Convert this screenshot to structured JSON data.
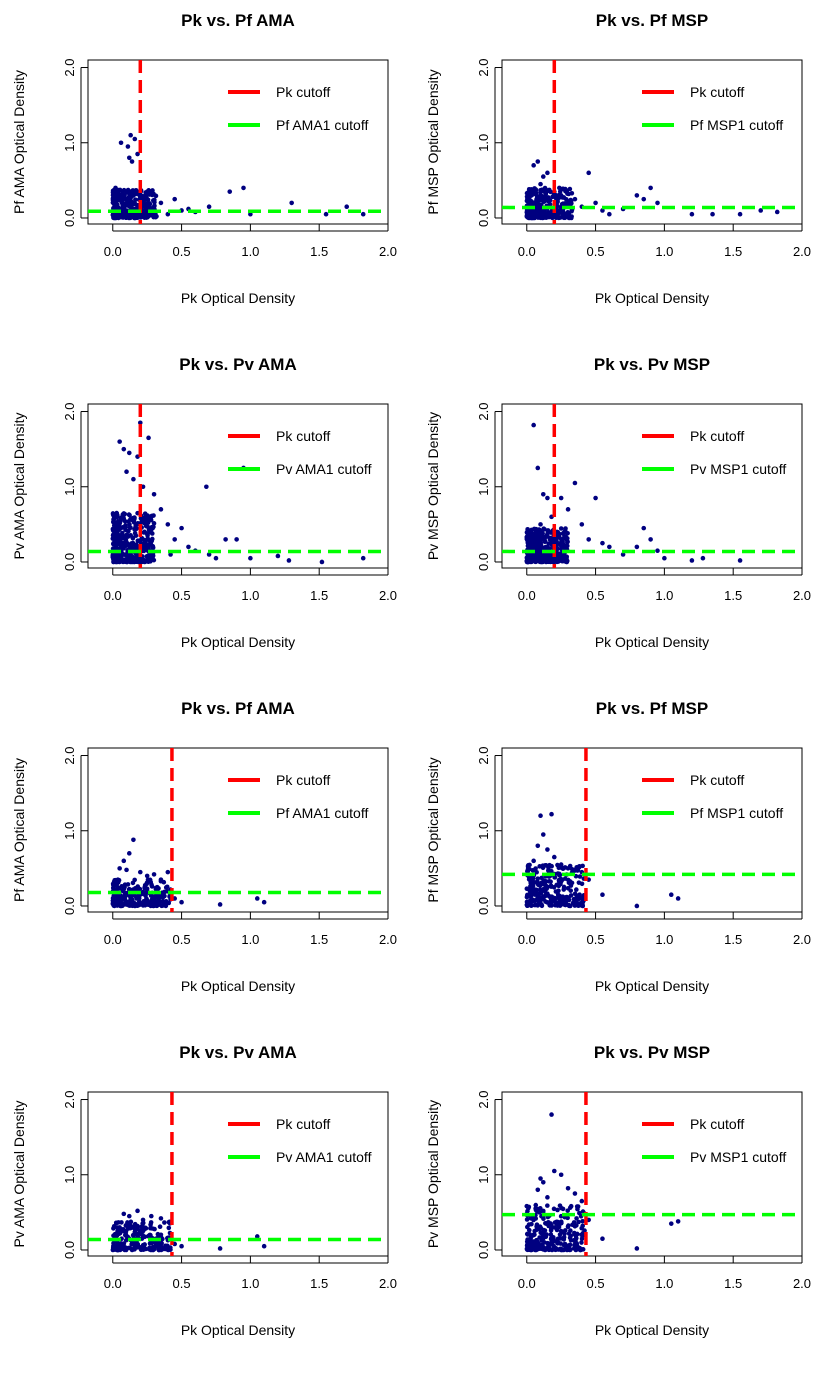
{
  "chart_data": [
    {
      "type": "scatter",
      "title": "Pk vs. Pf AMA",
      "xlabel": "Pk Optical Density",
      "ylabel": "Pf AMA Optical Density",
      "xlim": [
        -0.18,
        2.0
      ],
      "ylim": [
        -0.08,
        2.1
      ],
      "xticks": [
        "0.0",
        "0.5",
        "1.0",
        "1.5",
        "2.0"
      ],
      "yticks": [
        "0.0",
        "1.0",
        "2.0"
      ],
      "grid": false,
      "legend_position": "top-right",
      "series": [
        {
          "color": "#000080",
          "points": [
            [
              0.05,
              0.1
            ],
            [
              0.08,
              0.15
            ],
            [
              0.1,
              0.2
            ],
            [
              0.12,
              0.05
            ],
            [
              0.15,
              0.3
            ],
            [
              0.02,
              0.4
            ],
            [
              0.06,
              1.0
            ],
            [
              0.11,
              0.95
            ],
            [
              0.13,
              1.1
            ],
            [
              0.16,
              1.05
            ],
            [
              0.12,
              0.8
            ],
            [
              0.14,
              0.75
            ],
            [
              0.18,
              0.85
            ],
            [
              0.2,
              0.3
            ],
            [
              0.25,
              0.35
            ],
            [
              0.3,
              0.15
            ],
            [
              0.35,
              0.2
            ],
            [
              0.4,
              0.05
            ],
            [
              0.45,
              0.25
            ],
            [
              0.5,
              0.1
            ],
            [
              0.55,
              0.12
            ],
            [
              0.6,
              0.08
            ],
            [
              0.7,
              0.15
            ],
            [
              0.85,
              0.35
            ],
            [
              0.95,
              0.4
            ],
            [
              1.3,
              0.2
            ],
            [
              1.55,
              0.05
            ],
            [
              1.7,
              0.15
            ],
            [
              1.82,
              0.05
            ],
            [
              1.0,
              0.05
            ]
          ],
          "cloud": {
            "x": [
              0.0,
              0.32
            ],
            "y": [
              0.0,
              0.38
            ],
            "n": 300
          }
        }
      ],
      "cutoffs": [
        {
          "label": "Pk cutoff",
          "axis": "x",
          "value": 0.2,
          "color": "#ff0000"
        },
        {
          "label": "Pf AMA1 cutoff",
          "axis": "y",
          "value": 0.09,
          "color": "#00ff00"
        }
      ]
    },
    {
      "type": "scatter",
      "title": "Pk vs. Pf MSP",
      "xlabel": "Pk Optical Density",
      "ylabel": "Pf MSP Optical Density",
      "xlim": [
        -0.18,
        2.0
      ],
      "ylim": [
        -0.08,
        2.1
      ],
      "xticks": [
        "0.0",
        "0.5",
        "1.0",
        "1.5",
        "2.0"
      ],
      "yticks": [
        "0.0",
        "1.0",
        "2.0"
      ],
      "grid": false,
      "legend_position": "top-right",
      "series": [
        {
          "color": "#000080",
          "points": [
            [
              0.05,
              0.7
            ],
            [
              0.08,
              0.75
            ],
            [
              0.12,
              0.55
            ],
            [
              0.15,
              0.6
            ],
            [
              0.1,
              0.45
            ],
            [
              0.2,
              0.35
            ],
            [
              0.25,
              0.3
            ],
            [
              0.3,
              0.2
            ],
            [
              0.35,
              0.25
            ],
            [
              0.4,
              0.15
            ],
            [
              0.45,
              0.6
            ],
            [
              0.5,
              0.2
            ],
            [
              0.55,
              0.1
            ],
            [
              0.6,
              0.05
            ],
            [
              0.7,
              0.12
            ],
            [
              0.8,
              0.3
            ],
            [
              0.85,
              0.25
            ],
            [
              0.9,
              0.4
            ],
            [
              0.95,
              0.2
            ],
            [
              1.2,
              0.05
            ],
            [
              1.35,
              0.05
            ],
            [
              1.55,
              0.05
            ],
            [
              1.7,
              0.1
            ],
            [
              1.82,
              0.08
            ]
          ],
          "cloud": {
            "x": [
              0.0,
              0.33
            ],
            "y": [
              0.0,
              0.4
            ],
            "n": 300
          }
        }
      ],
      "cutoffs": [
        {
          "label": "Pk cutoff",
          "axis": "x",
          "value": 0.2,
          "color": "#ff0000"
        },
        {
          "label": "Pf MSP1 cutoff",
          "axis": "y",
          "value": 0.14,
          "color": "#00ff00"
        }
      ]
    },
    {
      "type": "scatter",
      "title": "Pk vs. Pv AMA",
      "xlabel": "Pk Optical Density",
      "ylabel": "Pv AMA Optical Density",
      "xlim": [
        -0.18,
        2.0
      ],
      "ylim": [
        -0.08,
        2.1
      ],
      "xticks": [
        "0.0",
        "0.5",
        "1.0",
        "1.5",
        "2.0"
      ],
      "yticks": [
        "0.0",
        "1.0",
        "2.0"
      ],
      "grid": false,
      "legend_position": "top-right",
      "series": [
        {
          "color": "#000080",
          "points": [
            [
              0.05,
              1.6
            ],
            [
              0.08,
              1.5
            ],
            [
              0.12,
              1.45
            ],
            [
              0.2,
              1.85
            ],
            [
              0.26,
              1.65
            ],
            [
              0.18,
              1.4
            ],
            [
              0.1,
              1.2
            ],
            [
              0.15,
              1.1
            ],
            [
              0.22,
              1.0
            ],
            [
              0.3,
              0.9
            ],
            [
              0.35,
              0.7
            ],
            [
              0.4,
              0.5
            ],
            [
              0.45,
              0.3
            ],
            [
              0.5,
              0.45
            ],
            [
              0.55,
              0.2
            ],
            [
              0.6,
              0.15
            ],
            [
              0.68,
              1.0
            ],
            [
              0.7,
              0.1
            ],
            [
              0.75,
              0.05
            ],
            [
              0.82,
              0.3
            ],
            [
              0.9,
              0.3
            ],
            [
              0.95,
              1.25
            ],
            [
              1.0,
              0.05
            ],
            [
              1.2,
              0.08
            ],
            [
              1.28,
              0.02
            ],
            [
              1.52,
              0.0
            ],
            [
              1.82,
              0.05
            ],
            [
              0.28,
              0.6
            ],
            [
              0.42,
              0.1
            ]
          ],
          "cloud": {
            "x": [
              0.0,
              0.3
            ],
            "y": [
              0.0,
              0.65
            ],
            "n": 400
          }
        }
      ],
      "cutoffs": [
        {
          "label": "Pk cutoff",
          "axis": "x",
          "value": 0.2,
          "color": "#ff0000"
        },
        {
          "label": "Pv AMA1 cutoff",
          "axis": "y",
          "value": 0.14,
          "color": "#00ff00"
        }
      ]
    },
    {
      "type": "scatter",
      "title": "Pk vs. Pv MSP",
      "xlabel": "Pk Optical Density",
      "ylabel": "Pv MSP Optical Density",
      "xlim": [
        -0.18,
        2.0
      ],
      "ylim": [
        -0.08,
        2.1
      ],
      "xticks": [
        "0.0",
        "0.5",
        "1.0",
        "1.5",
        "2.0"
      ],
      "yticks": [
        "0.0",
        "1.0",
        "2.0"
      ],
      "grid": false,
      "legend_position": "top-right",
      "series": [
        {
          "color": "#000080",
          "points": [
            [
              0.05,
              1.82
            ],
            [
              0.08,
              1.25
            ],
            [
              0.12,
              0.9
            ],
            [
              0.15,
              0.85
            ],
            [
              0.18,
              0.6
            ],
            [
              0.25,
              0.85
            ],
            [
              0.3,
              0.7
            ],
            [
              0.35,
              1.05
            ],
            [
              0.4,
              0.5
            ],
            [
              0.45,
              0.3
            ],
            [
              0.5,
              0.85
            ],
            [
              0.55,
              0.25
            ],
            [
              0.6,
              0.2
            ],
            [
              0.7,
              0.1
            ],
            [
              0.8,
              0.2
            ],
            [
              0.85,
              0.45
            ],
            [
              0.9,
              0.3
            ],
            [
              0.95,
              0.15
            ],
            [
              1.0,
              0.05
            ],
            [
              1.2,
              0.02
            ],
            [
              1.28,
              0.05
            ],
            [
              1.55,
              0.02
            ],
            [
              0.1,
              0.5
            ],
            [
              0.22,
              0.4
            ]
          ],
          "cloud": {
            "x": [
              0.0,
              0.3
            ],
            "y": [
              0.0,
              0.45
            ],
            "n": 380
          }
        }
      ],
      "cutoffs": [
        {
          "label": "Pk cutoff",
          "axis": "x",
          "value": 0.2,
          "color": "#ff0000"
        },
        {
          "label": "Pv MSP1 cutoff",
          "axis": "y",
          "value": 0.14,
          "color": "#00ff00"
        }
      ]
    },
    {
      "type": "scatter",
      "title": "Pk vs. Pf AMA",
      "xlabel": "Pk Optical Density",
      "ylabel": "Pf AMA Optical Density",
      "xlim": [
        -0.18,
        2.0
      ],
      "ylim": [
        -0.08,
        2.1
      ],
      "xticks": [
        "0.0",
        "0.5",
        "1.0",
        "1.5",
        "2.0"
      ],
      "yticks": [
        "0.0",
        "1.0",
        "2.0"
      ],
      "grid": false,
      "legend_position": "top-right",
      "series": [
        {
          "color": "#000080",
          "points": [
            [
              0.15,
              0.88
            ],
            [
              0.12,
              0.7
            ],
            [
              0.08,
              0.6
            ],
            [
              0.05,
              0.5
            ],
            [
              0.1,
              0.48
            ],
            [
              0.2,
              0.45
            ],
            [
              0.25,
              0.4
            ],
            [
              0.3,
              0.42
            ],
            [
              0.4,
              0.45
            ],
            [
              0.45,
              0.1
            ],
            [
              0.5,
              0.05
            ],
            [
              0.78,
              0.02
            ],
            [
              1.05,
              0.1
            ],
            [
              1.1,
              0.05
            ],
            [
              0.35,
              0.35
            ]
          ],
          "cloud": {
            "x": [
              0.0,
              0.42
            ],
            "y": [
              0.0,
              0.35
            ],
            "n": 220
          }
        }
      ],
      "cutoffs": [
        {
          "label": "Pk cutoff",
          "axis": "x",
          "value": 0.43,
          "color": "#ff0000"
        },
        {
          "label": "Pf AMA1 cutoff",
          "axis": "y",
          "value": 0.18,
          "color": "#00ff00"
        }
      ]
    },
    {
      "type": "scatter",
      "title": "Pk vs. Pf MSP",
      "xlabel": "Pk Optical Density",
      "ylabel": "Pf MSP Optical Density",
      "xlim": [
        -0.18,
        2.0
      ],
      "ylim": [
        -0.08,
        2.1
      ],
      "xticks": [
        "0.0",
        "0.5",
        "1.0",
        "1.5",
        "2.0"
      ],
      "yticks": [
        "0.0",
        "1.0",
        "2.0"
      ],
      "grid": false,
      "legend_position": "top-right",
      "series": [
        {
          "color": "#000080",
          "points": [
            [
              0.1,
              1.2
            ],
            [
              0.18,
              1.22
            ],
            [
              0.12,
              0.95
            ],
            [
              0.08,
              0.8
            ],
            [
              0.15,
              0.75
            ],
            [
              0.05,
              0.6
            ],
            [
              0.2,
              0.65
            ],
            [
              0.25,
              0.55
            ],
            [
              0.3,
              0.5
            ],
            [
              0.35,
              0.48
            ],
            [
              0.4,
              0.45
            ],
            [
              0.45,
              0.35
            ],
            [
              0.55,
              0.15
            ],
            [
              0.8,
              0.0
            ],
            [
              1.05,
              0.15
            ],
            [
              1.1,
              0.1
            ]
          ],
          "cloud": {
            "x": [
              0.0,
              0.42
            ],
            "y": [
              0.0,
              0.55
            ],
            "n": 260
          }
        }
      ],
      "cutoffs": [
        {
          "label": "Pk cutoff",
          "axis": "x",
          "value": 0.43,
          "color": "#ff0000"
        },
        {
          "label": "Pf MSP1 cutoff",
          "axis": "y",
          "value": 0.42,
          "color": "#00ff00"
        }
      ]
    },
    {
      "type": "scatter",
      "title": "Pk vs. Pv AMA",
      "xlabel": "Pk Optical Density",
      "ylabel": "Pv AMA Optical Density",
      "xlim": [
        -0.18,
        2.0
      ],
      "ylim": [
        -0.08,
        2.1
      ],
      "xticks": [
        "0.0",
        "0.5",
        "1.0",
        "1.5",
        "2.0"
      ],
      "yticks": [
        "0.0",
        "1.0",
        "2.0"
      ],
      "grid": false,
      "legend_position": "top-right",
      "series": [
        {
          "color": "#000080",
          "points": [
            [
              0.18,
              0.52
            ],
            [
              0.12,
              0.45
            ],
            [
              0.08,
              0.48
            ],
            [
              0.22,
              0.4
            ],
            [
              0.28,
              0.45
            ],
            [
              0.35,
              0.42
            ],
            [
              0.45,
              0.08
            ],
            [
              0.5,
              0.05
            ],
            [
              0.78,
              0.02
            ],
            [
              1.05,
              0.18
            ],
            [
              1.1,
              0.05
            ]
          ],
          "cloud": {
            "x": [
              0.0,
              0.42
            ],
            "y": [
              0.0,
              0.38
            ],
            "n": 220
          }
        }
      ],
      "cutoffs": [
        {
          "label": "Pk cutoff",
          "axis": "x",
          "value": 0.43,
          "color": "#ff0000"
        },
        {
          "label": "Pv AMA1 cutoff",
          "axis": "y",
          "value": 0.14,
          "color": "#00ff00"
        }
      ]
    },
    {
      "type": "scatter",
      "title": "Pk vs. Pv MSP",
      "xlabel": "Pk Optical Density",
      "ylabel": "Pv MSP Optical Density",
      "xlim": [
        -0.18,
        2.0
      ],
      "ylim": [
        -0.08,
        2.1
      ],
      "xticks": [
        "0.0",
        "0.5",
        "1.0",
        "1.5",
        "2.0"
      ],
      "yticks": [
        "0.0",
        "1.0",
        "2.0"
      ],
      "grid": false,
      "legend_position": "top-right",
      "series": [
        {
          "color": "#000080",
          "points": [
            [
              0.18,
              1.8
            ],
            [
              0.2,
              1.05
            ],
            [
              0.25,
              1.0
            ],
            [
              0.1,
              0.95
            ],
            [
              0.12,
              0.9
            ],
            [
              0.08,
              0.8
            ],
            [
              0.3,
              0.82
            ],
            [
              0.35,
              0.75
            ],
            [
              0.15,
              0.7
            ],
            [
              0.4,
              0.65
            ],
            [
              0.45,
              0.4
            ],
            [
              0.55,
              0.15
            ],
            [
              0.8,
              0.02
            ],
            [
              1.05,
              0.35
            ],
            [
              1.1,
              0.38
            ]
          ],
          "cloud": {
            "x": [
              0.0,
              0.42
            ],
            "y": [
              0.0,
              0.6
            ],
            "n": 260
          }
        }
      ],
      "cutoffs": [
        {
          "label": "Pk cutoff",
          "axis": "x",
          "value": 0.43,
          "color": "#ff0000"
        },
        {
          "label": "Pv MSP1 cutoff",
          "axis": "y",
          "value": 0.47,
          "color": "#00ff00"
        }
      ]
    }
  ]
}
